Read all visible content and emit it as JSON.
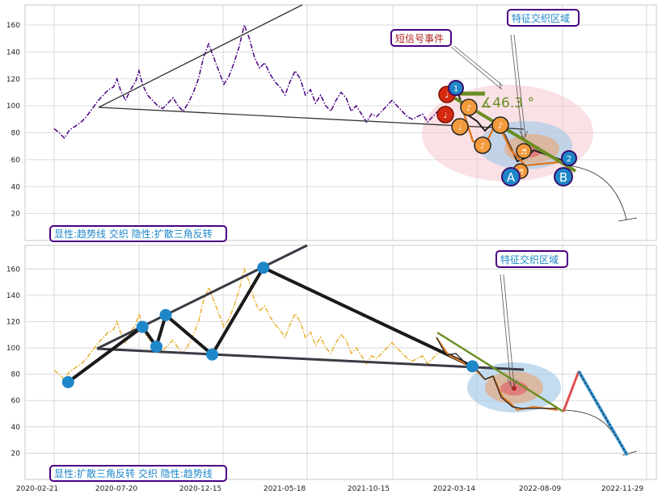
{
  "chart_data": [
    {
      "type": "line",
      "panel": "top",
      "ylim": [
        0,
        175
      ],
      "yticks": [
        20,
        40,
        60,
        80,
        100,
        120,
        140,
        160
      ],
      "series": [
        {
          "color": "#4b0082",
          "style": "dash-dot",
          "points": [
            [
              0,
              83
            ],
            [
              6,
              80
            ],
            [
              12,
              76
            ],
            [
              18,
              82
            ],
            [
              25,
              85
            ],
            [
              32,
              88
            ],
            [
              38,
              92
            ],
            [
              45,
              98
            ],
            [
              52,
              104
            ],
            [
              58,
              108
            ],
            [
              64,
              112
            ],
            [
              70,
              114
            ],
            [
              74,
              120
            ],
            [
              78,
              112
            ],
            [
              84,
              104
            ],
            [
              90,
              112
            ],
            [
              96,
              118
            ],
            [
              100,
              126
            ],
            [
              104,
              116
            ],
            [
              110,
              108
            ],
            [
              116,
              104
            ],
            [
              122,
              100
            ],
            [
              128,
              98
            ],
            [
              134,
              102
            ],
            [
              140,
              106
            ],
            [
              146,
              100
            ],
            [
              152,
              96
            ],
            [
              158,
              102
            ],
            [
              164,
              110
            ],
            [
              170,
              120
            ],
            [
              176,
              136
            ],
            [
              182,
              146
            ],
            [
              188,
              136
            ],
            [
              194,
              126
            ],
            [
              200,
              116
            ],
            [
              206,
              122
            ],
            [
              212,
              132
            ],
            [
              218,
              144
            ],
            [
              224,
              160
            ],
            [
              230,
              150
            ],
            [
              236,
              136
            ],
            [
              242,
              128
            ],
            [
              248,
              132
            ],
            [
              254,
              124
            ],
            [
              260,
              118
            ],
            [
              266,
              114
            ],
            [
              272,
              108
            ],
            [
              278,
              118
            ],
            [
              284,
              126
            ],
            [
              290,
              120
            ],
            [
              296,
              108
            ],
            [
              302,
              112
            ],
            [
              308,
              102
            ],
            [
              314,
              108
            ],
            [
              320,
              100
            ],
            [
              326,
              96
            ],
            [
              332,
              104
            ],
            [
              338,
              110
            ],
            [
              344,
              106
            ],
            [
              350,
              96
            ],
            [
              356,
              100
            ],
            [
              362,
              94
            ],
            [
              368,
              88
            ],
            [
              374,
              94
            ],
            [
              380,
              92
            ],
            [
              386,
              96
            ],
            [
              392,
              100
            ],
            [
              398,
              104
            ],
            [
              404,
              100
            ],
            [
              410,
              96
            ],
            [
              416,
              92
            ],
            [
              422,
              90
            ],
            [
              428,
              92
            ],
            [
              434,
              94
            ],
            [
              440,
              88
            ],
            [
              446,
              92
            ],
            [
              452,
              96
            ],
            [
              458,
              98
            ],
            [
              462,
              100
            ]
          ]
        }
      ],
      "trendlines": [
        {
          "from": [
            50,
            100
          ],
          "to": [
            270,
            165
          ],
          "color": "#333333"
        },
        {
          "from": [
            50,
            100
          ],
          "to": [
            520,
            87
          ],
          "color": "#333333"
        }
      ],
      "annotations": {
        "box_left": "显性:趋势线 交织 隐性:扩散三角反转",
        "box_top_right": "特征交织区域",
        "box_signal": "短信号事件",
        "angle_text": "∡46.3 °",
        "point_labels": [
          "1",
          "2",
          "A",
          "B"
        ]
      }
    },
    {
      "type": "line",
      "panel": "bottom",
      "ylim": [
        0,
        178
      ],
      "yticks": [
        20,
        40,
        60,
        80,
        100,
        120,
        140,
        160
      ],
      "xticks": [
        "2020-02-21",
        "2020-07-20",
        "2020-12-15",
        "2021-05-18",
        "2021-10-15",
        "2022-03-14",
        "2022-08-09",
        "2022-11-29"
      ],
      "series": [
        {
          "color": "#e8b030",
          "style": "dash-dot",
          "points": [
            [
              0,
              83
            ],
            [
              6,
              80
            ],
            [
              12,
              76
            ],
            [
              18,
              82
            ],
            [
              25,
              85
            ],
            [
              32,
              88
            ],
            [
              38,
              92
            ],
            [
              45,
              98
            ],
            [
              52,
              104
            ],
            [
              58,
              108
            ],
            [
              64,
              112
            ],
            [
              70,
              114
            ],
            [
              74,
              120
            ],
            [
              78,
              112
            ],
            [
              84,
              104
            ],
            [
              90,
              112
            ],
            [
              96,
              118
            ],
            [
              100,
              126
            ],
            [
              104,
              116
            ],
            [
              110,
              108
            ],
            [
              116,
              104
            ],
            [
              122,
              100
            ],
            [
              128,
              98
            ],
            [
              134,
              102
            ],
            [
              140,
              106
            ],
            [
              146,
              100
            ],
            [
              152,
              96
            ],
            [
              158,
              102
            ],
            [
              164,
              110
            ],
            [
              170,
              120
            ],
            [
              176,
              136
            ],
            [
              182,
              146
            ],
            [
              188,
              136
            ],
            [
              194,
              126
            ],
            [
              200,
              116
            ],
            [
              206,
              122
            ],
            [
              212,
              132
            ],
            [
              218,
              144
            ],
            [
              224,
              160
            ],
            [
              230,
              150
            ],
            [
              236,
              136
            ],
            [
              242,
              128
            ],
            [
              248,
              132
            ],
            [
              254,
              124
            ],
            [
              260,
              118
            ],
            [
              266,
              114
            ],
            [
              272,
              108
            ],
            [
              278,
              118
            ],
            [
              284,
              126
            ],
            [
              290,
              120
            ],
            [
              296,
              108
            ],
            [
              302,
              112
            ],
            [
              308,
              102
            ],
            [
              314,
              108
            ],
            [
              320,
              100
            ],
            [
              326,
              96
            ],
            [
              332,
              104
            ],
            [
              338,
              110
            ],
            [
              344,
              106
            ],
            [
              350,
              96
            ],
            [
              356,
              100
            ],
            [
              362,
              94
            ],
            [
              368,
              88
            ],
            [
              374,
              94
            ],
            [
              380,
              92
            ],
            [
              386,
              96
            ],
            [
              392,
              100
            ],
            [
              398,
              104
            ],
            [
              404,
              100
            ],
            [
              410,
              96
            ],
            [
              416,
              92
            ],
            [
              422,
              90
            ],
            [
              428,
              92
            ],
            [
              434,
              94
            ],
            [
              440,
              88
            ],
            [
              446,
              92
            ],
            [
              452,
              96
            ],
            [
              458,
              98
            ],
            [
              462,
              100
            ]
          ]
        }
      ],
      "zigzag": [
        [
          15,
          74
        ],
        [
          95,
          116
        ],
        [
          110,
          101
        ],
        [
          120,
          125
        ],
        [
          170,
          95
        ],
        [
          225,
          161
        ],
        [
          450,
          86
        ]
      ],
      "annotations": {
        "box_left": "显性:扩散三角反转 交织 隐性:趋势线",
        "box_top_right": "特征交织区域"
      }
    }
  ]
}
